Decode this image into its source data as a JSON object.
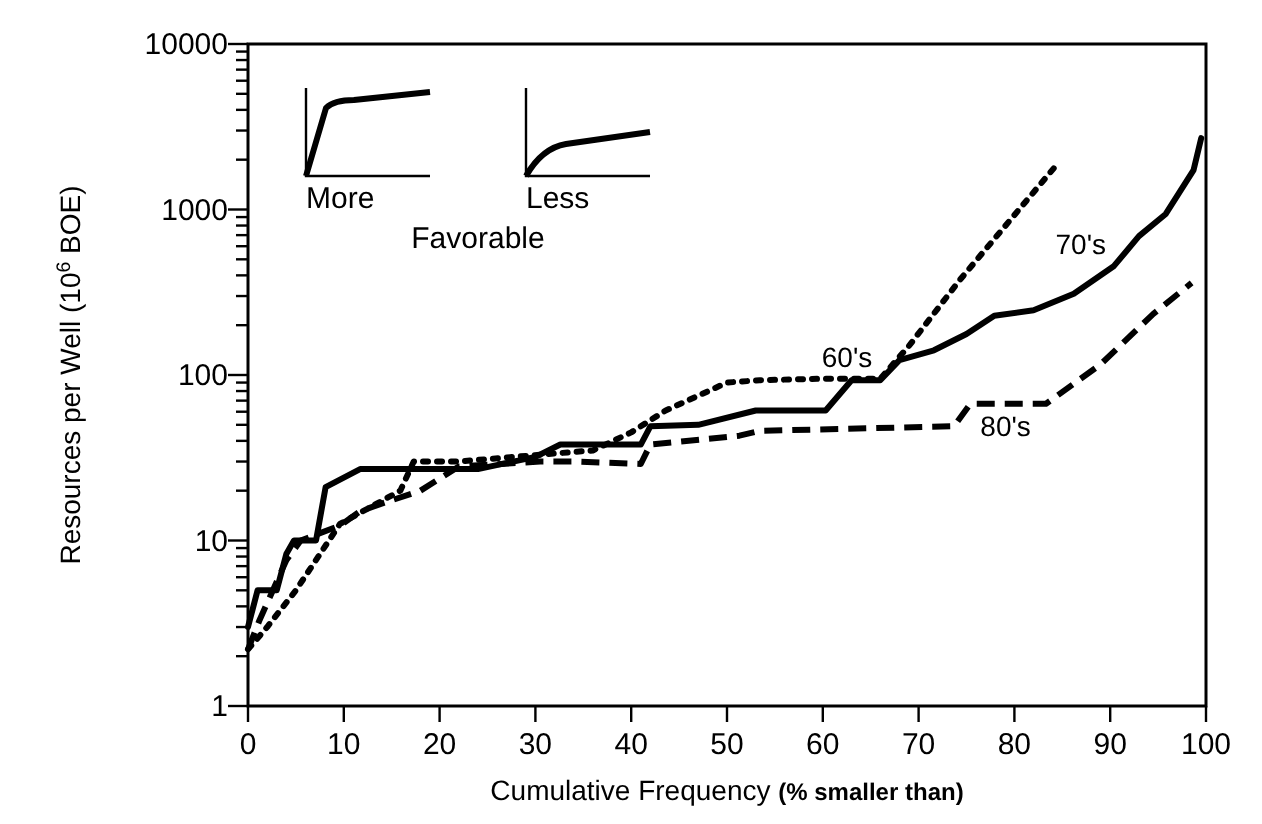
{
  "chart_data": {
    "type": "line",
    "xlabel": "Cumulative Frequency (% smaller than)",
    "ylabel": "Resources per Well (10$^{6}$ BOE)",
    "log": "y",
    "grid": false,
    "xlim": [
      0,
      100
    ],
    "xticks": [
      0,
      10,
      20,
      30,
      40,
      50,
      60,
      70,
      80,
      90,
      100
    ],
    "ylim": [
      1,
      10000
    ],
    "yticks": [
      1,
      {
        "value": 2,
        "label": null
      },
      {
        "value": 3,
        "label": null
      },
      {
        "value": 4,
        "label": null
      },
      {
        "value": 5,
        "label": null
      },
      {
        "value": 6,
        "label": null
      },
      {
        "value": 7,
        "label": null
      },
      {
        "value": 8,
        "label": null
      },
      {
        "value": 9,
        "label": null
      },
      10,
      {
        "value": 20,
        "label": null
      },
      {
        "value": 30,
        "label": null
      },
      {
        "value": 40,
        "label": null
      },
      {
        "value": 50,
        "label": null
      },
      {
        "value": 60,
        "label": null
      },
      {
        "value": 70,
        "label": null
      },
      {
        "value": 80,
        "label": null
      },
      {
        "value": 90,
        "label": null
      },
      100,
      {
        "value": 200,
        "label": null
      },
      {
        "value": 300,
        "label": null
      },
      {
        "value": 400,
        "label": null
      },
      {
        "value": 500,
        "label": null
      },
      {
        "value": 600,
        "label": null
      },
      {
        "value": 700,
        "label": null
      },
      {
        "value": 800,
        "label": null
      },
      {
        "value": 900,
        "label": null
      },
      1000,
      {
        "value": 2000,
        "label": null
      },
      {
        "value": 3000,
        "label": null
      },
      {
        "value": 4000,
        "label": null
      },
      {
        "value": 5000,
        "label": null
      },
      {
        "value": 6000,
        "label": null
      },
      {
        "value": 7000,
        "label": null
      },
      {
        "value": 8000,
        "label": null
      },
      {
        "value": 9000,
        "label": null
      },
      10000
    ],
    "series": [
      {
        "name": "60's",
        "color": "#000000",
        "line_style": "dotted",
        "x": [
          0,
          2,
          5,
          9.6,
          15.9,
          17.3,
          22,
          30.5,
          36,
          40,
          43.6,
          50,
          53.4,
          60,
          66,
          69,
          74.3,
          79,
          84.3
        ],
        "values": [
          2.2,
          3,
          5,
          12.6,
          20,
          30,
          30,
          33,
          35,
          45,
          61,
          90,
          93,
          95,
          95,
          150,
          375,
          790,
          1830
        ]
      },
      {
        "name": "70's",
        "color": "#000000",
        "line_style": "solid",
        "x": [
          0,
          1,
          3,
          4,
          4.8,
          7.1,
          8.1,
          11.7,
          24,
          30,
          32.6,
          41,
          42,
          47,
          53,
          60.3,
          63,
          66,
          68,
          71.6,
          75,
          77.9,
          82,
          86.2,
          90.4,
          93,
          95.8,
          98.7,
          99.5
        ],
        "values": [
          3,
          5,
          5,
          8.3,
          10,
          10,
          21,
          27,
          27,
          32,
          38,
          38,
          49,
          50,
          61,
          61,
          93,
          93,
          123,
          141,
          177,
          228,
          246,
          310,
          456,
          690,
          940,
          1730,
          2700
        ]
      },
      {
        "name": "80's",
        "color": "#000000",
        "line_style": "dashed",
        "x": [
          0,
          1.2,
          4,
          5.5,
          9.6,
          11.7,
          13.8,
          18,
          22,
          30.5,
          34,
          41,
          42,
          51.3,
          53.4,
          73.7,
          75.4,
          83.3,
          89,
          94.5,
          98.5
        ],
        "values": [
          2.2,
          3.3,
          7.6,
          10,
          12.3,
          15,
          16.6,
          20,
          28,
          30,
          30,
          29,
          38,
          43,
          46,
          49,
          67,
          67,
          116,
          234,
          360
        ]
      }
    ],
    "annotations": [
      "More",
      "Less",
      "Favorable"
    ]
  }
}
